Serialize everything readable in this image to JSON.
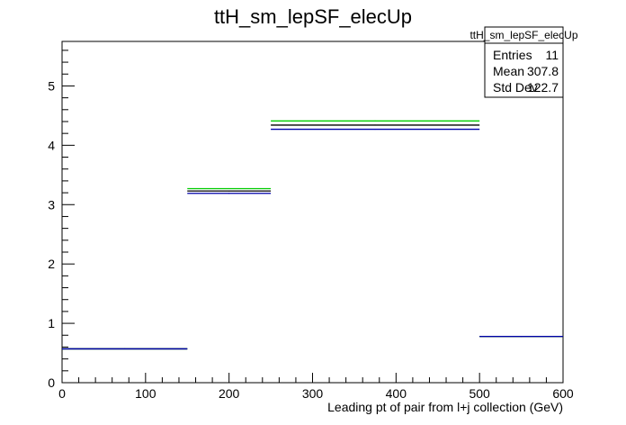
{
  "chart_data": {
    "type": "histogram",
    "title": "ttH_sm_lepSF_elecUp",
    "xlabel": "Leading pt of pair from l+j collection (GeV)",
    "ylabel": "",
    "xlim": [
      0,
      600
    ],
    "ylim": [
      0,
      5.75
    ],
    "x_ticks": [
      0,
      100,
      200,
      300,
      400,
      500,
      600
    ],
    "y_ticks": [
      0,
      1,
      2,
      3,
      4,
      5
    ],
    "grid": false,
    "stats_box": {
      "title": "ttH_sm_lepSF_elecUp",
      "rows": [
        {
          "label": "Entries",
          "value": "11"
        },
        {
          "label": "Mean",
          "value": "307.8"
        },
        {
          "label": "Std Dev",
          "value": "122.7"
        }
      ]
    },
    "bin_edges": [
      0,
      150,
      250,
      500,
      600
    ],
    "series": [
      {
        "color": "#00cc00",
        "values": [
          0.57,
          3.27,
          4.41,
          0.78
        ]
      },
      {
        "color": "#000000",
        "values": [
          0.57,
          3.23,
          4.34,
          0.78
        ]
      },
      {
        "color": "#0000aa",
        "values": [
          0.57,
          3.19,
          4.27,
          0.78
        ]
      }
    ]
  }
}
